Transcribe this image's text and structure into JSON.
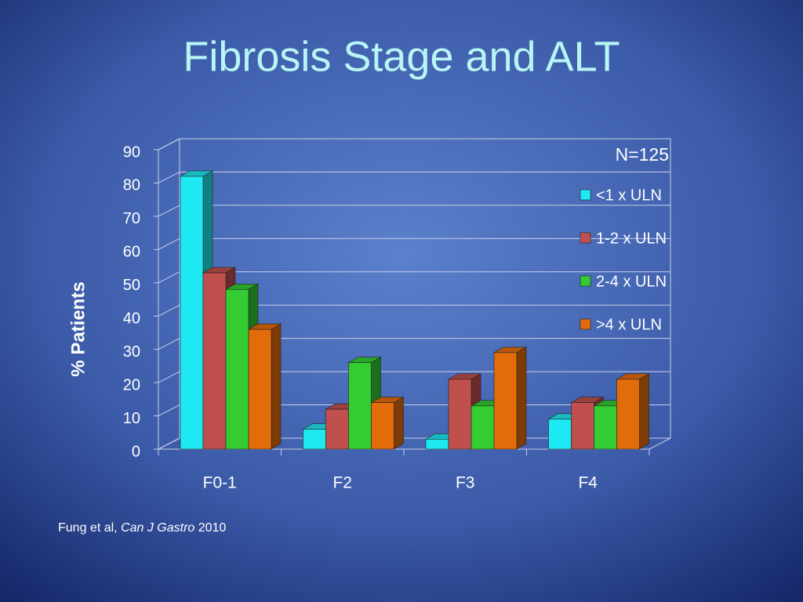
{
  "chart_data": {
    "type": "bar3d",
    "title": "Fibrosis Stage and ALT",
    "y_label": "% Patients",
    "annotation": "N=125",
    "categories": [
      "F0-1",
      "F2",
      "F3",
      "F4"
    ],
    "series": [
      {
        "name": "<1 x ULN",
        "color": "#1ee8f2",
        "values": [
          82,
          6,
          3,
          9
        ]
      },
      {
        "name": "1-2 x ULN",
        "color": "#c0504d",
        "values": [
          53,
          12,
          21,
          14
        ]
      },
      {
        "name": "2-4 x ULN",
        "color": "#33cc33",
        "values": [
          48,
          26,
          13,
          13
        ]
      },
      {
        "name": ">4 x ULN",
        "color": "#e36c0a",
        "values": [
          36,
          14,
          29,
          21
        ]
      }
    ],
    "ylim": [
      0,
      90
    ],
    "yticks": [
      0,
      10,
      20,
      30,
      40,
      50,
      60,
      70,
      80,
      90
    ],
    "grid": true
  },
  "source": {
    "authors": "Fung et al,",
    "journal": "Can J Gastro",
    "year": "2010"
  }
}
